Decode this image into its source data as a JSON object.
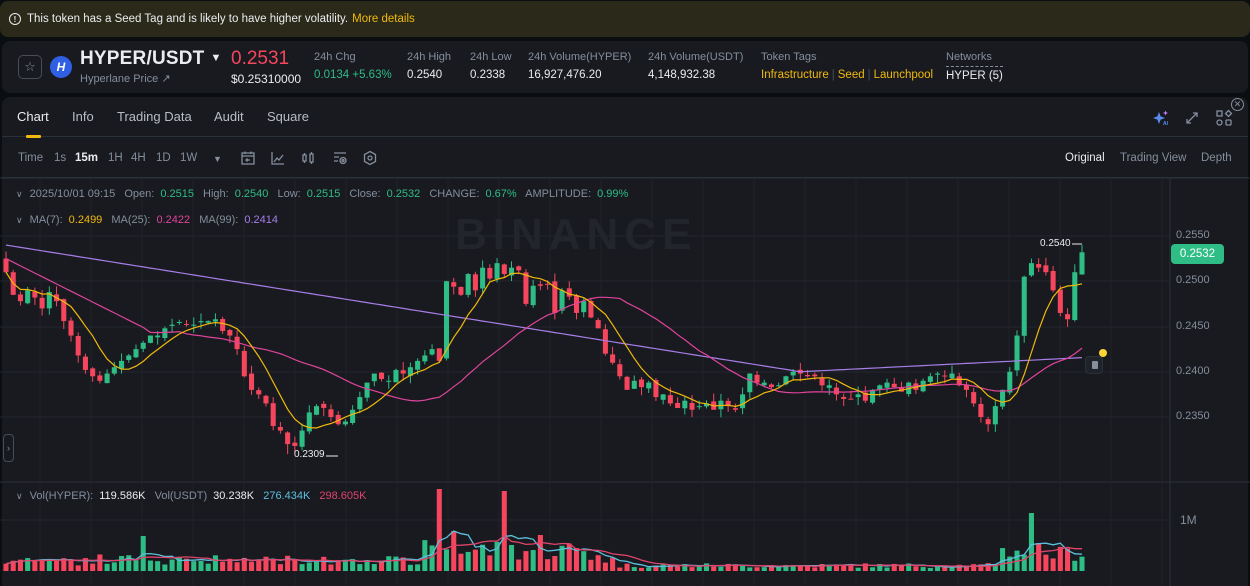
{
  "banner": {
    "text": "This token has a Seed Tag and is likely to have higher volatility.",
    "link": "More details",
    "icon": "info-circle-icon"
  },
  "ticker": {
    "pair": "HYPER/USDT",
    "name": "Hyperlane Price ↗",
    "coin_letter": "H",
    "last_price": "0.2531",
    "last_price_usd": "$0.25310000",
    "stats": {
      "chg_label": "24h Chg",
      "chg_value": "0.0134 +5.63%",
      "high_label": "24h High",
      "high_value": "0.2540",
      "low_label": "24h Low",
      "low_value": "0.2338",
      "volb_label": "24h Volume(HYPER)",
      "volb_value": "16,927,476.20",
      "volq_label": "24h Volume(USDT)",
      "volq_value": "4,148,932.38",
      "tags_label": "Token Tags",
      "tags": [
        "Infrastructure",
        "Seed",
        "Launchpool"
      ],
      "net_label": "Networks",
      "net_value": "HYPER (5)"
    }
  },
  "tabs": [
    {
      "label": "Chart",
      "active": true
    },
    {
      "label": "Info"
    },
    {
      "label": "Trading Data"
    },
    {
      "label": "Audit"
    },
    {
      "label": "Square"
    }
  ],
  "top_right_icons": [
    "ai-sparkle-icon",
    "expand-icon",
    "layout-grid-icon",
    "close-icon"
  ],
  "toolbar": {
    "time_label": "Time",
    "intervals": [
      "1s",
      "15m",
      "1H",
      "4H",
      "1D",
      "1W"
    ],
    "active_interval": "15m",
    "icons": [
      "interval-dropdown-icon",
      "calendar-icon",
      "line-chart-icon",
      "candlestick-icon",
      "indicator-settings-icon",
      "hexagon-settings-icon"
    ],
    "views": [
      "Original",
      "Trading View",
      "Depth"
    ],
    "active_view": "Original"
  },
  "ohlc_legend": {
    "datetime": "2025/10/01 09:15",
    "open_label": "Open:",
    "open": "0.2515",
    "high_label": "High:",
    "high": "0.2540",
    "low_label": "Low:",
    "low": "0.2515",
    "close_label": "Close:",
    "close": "0.2532",
    "change_label": "CHANGE:",
    "change": "0.67%",
    "amp_label": "AMPLITUDE:",
    "amp": "0.99%"
  },
  "ma_legend": {
    "ma7_label": "MA(7):",
    "ma7": "0.2499",
    "ma25_label": "MA(25):",
    "ma25": "0.2422",
    "ma99_label": "MA(99):",
    "ma99": "0.2414"
  },
  "vol_legend": {
    "base_label": "Vol(HYPER):",
    "base": "119.586K",
    "quote_label": "Vol(USDT)",
    "quote": "30.238K",
    "ma5": "276.434K",
    "ma10": "298.605K"
  },
  "price_axis": [
    "0.2550",
    "0.2500",
    "0.2450",
    "0.2400",
    "0.2350"
  ],
  "current_price_tag": "0.2532",
  "volume_axis": [
    "1M"
  ],
  "annotations": {
    "high": "0.2540",
    "low": "0.2309"
  },
  "watermark": "BINANCE",
  "colors": {
    "up": "#2ebd85",
    "down": "#f6465d",
    "ma7": "#f0b90b",
    "ma25": "#e0449b",
    "ma99": "#9b6fe0",
    "vol_ma5": "#5bc0de",
    "vol_ma10": "#e0446b",
    "accent": "#f0b90b"
  },
  "chart_data": {
    "type": "candlestick",
    "interval": "15m",
    "ylim": [
      0.229,
      0.2565
    ],
    "yticks": [
      0.235,
      0.24,
      0.245,
      0.25,
      0.255
    ],
    "last_close": 0.2532,
    "period_high": 0.254,
    "period_low": 0.2309,
    "closes": [
      0.251,
      0.2485,
      0.2478,
      0.249,
      0.2482,
      0.247,
      0.2488,
      0.2478,
      0.2456,
      0.244,
      0.2418,
      0.2402,
      0.2395,
      0.239,
      0.2398,
      0.2405,
      0.2412,
      0.2418,
      0.2425,
      0.2432,
      0.244,
      0.244,
      0.2448,
      0.2452,
      0.2455,
      0.2452,
      0.2452,
      0.2456,
      0.2456,
      0.2458,
      0.2445,
      0.244,
      0.2425,
      0.2395,
      0.238,
      0.2375,
      0.2365,
      0.234,
      0.2335,
      0.232,
      0.2318,
      0.2335,
      0.2355,
      0.2362,
      0.236,
      0.235,
      0.2342,
      0.2345,
      0.2358,
      0.2372,
      0.2388,
      0.2398,
      0.2392,
      0.239,
      0.2402,
      0.2398,
      0.2405,
      0.2412,
      0.2418,
      0.2425,
      0.2412,
      0.25,
      0.2494,
      0.2485,
      0.2508,
      0.249,
      0.2515,
      0.2503,
      0.252,
      0.2508,
      0.2515,
      0.2512,
      0.2475,
      0.2495,
      0.2495,
      0.2497,
      0.2465,
      0.249,
      0.2483,
      0.2465,
      0.2478,
      0.246,
      0.2448,
      0.242,
      0.241,
      0.2395,
      0.238,
      0.239,
      0.2383,
      0.2388,
      0.2372,
      0.2375,
      0.2365,
      0.236,
      0.2368,
      0.2358,
      0.2362,
      0.2365,
      0.2358,
      0.2368,
      0.2362,
      0.2358,
      0.2375,
      0.2398,
      0.2388,
      0.2388,
      0.2383,
      0.2385,
      0.2395,
      0.24,
      0.2398,
      0.2395,
      0.2395,
      0.2385,
      0.2385,
      0.2375,
      0.237,
      0.237,
      0.2375,
      0.2368,
      0.238,
      0.2385,
      0.2388,
      0.2383,
      0.2378,
      0.2388,
      0.238,
      0.239,
      0.2395,
      0.2398,
      0.2395,
      0.2398,
      0.2385,
      0.238,
      0.2365,
      0.235,
      0.2342,
      0.2362,
      0.238,
      0.24,
      0.244,
      0.2505,
      0.252,
      0.2515,
      0.251,
      0.249,
      0.2465,
      0.2458,
      0.251,
      0.2532
    ],
    "series": [
      {
        "name": "MA(7)",
        "last": 0.2499
      },
      {
        "name": "MA(25)",
        "last": 0.2422
      },
      {
        "name": "MA(99)",
        "last": 0.2414
      }
    ],
    "volume": {
      "ylabel_tick": "1M",
      "vol_hyper": "119.586K",
      "vol_usdt": "30.238K",
      "ma5": "276.434K",
      "ma10": "298.605K"
    }
  }
}
